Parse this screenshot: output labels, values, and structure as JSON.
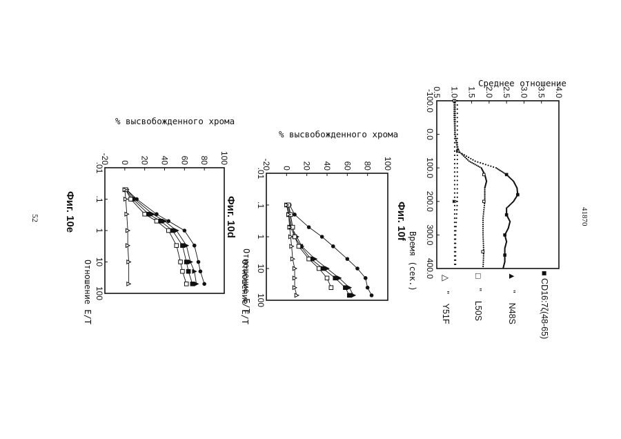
{
  "page": {
    "doc_number": "41870",
    "page_number": "52"
  },
  "figures": {
    "top": {
      "y_title": "Среднее отношение",
      "x_title": "Время (сек.)",
      "x_ticks": [
        "-100.0",
        "0.0",
        "100.0",
        "200.0",
        "300.0",
        "400.0"
      ],
      "y_ticks": [
        "0.5",
        "1.0",
        "1.5",
        "2.0",
        "2.5",
        "3.0",
        "3.5",
        "4.0"
      ],
      "legend": [
        {
          "marker": "■",
          "prefix": "",
          "label": "CD16:7ζ(48-65)"
        },
        {
          "marker": "▲",
          "prefix": "\"",
          "label": "N48S"
        },
        {
          "marker": "□",
          "prefix": "\"",
          "label": "L50S"
        },
        {
          "marker": "△",
          "prefix": "\"",
          "label": "Y51F"
        }
      ]
    },
    "fig10f": {
      "title": "Фиг. 10f",
      "y_title": "% высвобожденного хрома",
      "x_title": "Отношение Е/Т",
      "x_ticks": [
        ".01",
        ".1",
        "1",
        "10",
        "100"
      ],
      "y_ticks": [
        "-20",
        "0",
        "20",
        "40",
        "60",
        "80",
        "100"
      ]
    },
    "fig10d": {
      "title": "Фиг. 10d",
      "x_title": "Отношение Е/Т",
      "x_ticks": [
        ".01",
        ".1",
        "1",
        "10",
        "100"
      ],
      "y_ticks": [
        "-20",
        "0",
        "20",
        "40",
        "60",
        "80",
        "100"
      ]
    },
    "fig10e": {
      "title": "Фиг. 10е",
      "y_title": "% высвобожденного хрома",
      "x_title": "Отношение Е/Т"
    }
  },
  "chart_data": [
    {
      "type": "scatter",
      "xlabel": "Время (сек.)",
      "ylabel": "Среднее отношение",
      "xlim": [
        -100,
        400
      ],
      "ylim": [
        0.5,
        4.0
      ],
      "series": [
        {
          "name": "CD16:7ζ(48-65)",
          "marker": "filled-square",
          "x": [
            -100,
            -50,
            0,
            50,
            80,
            100,
            120,
            140,
            160,
            180,
            200,
            220,
            240,
            260,
            280,
            300,
            320,
            340,
            360,
            380,
            400
          ],
          "y": [
            1.0,
            1.0,
            1.02,
            1.1,
            1.6,
            2.2,
            2.5,
            2.7,
            2.8,
            2.82,
            2.7,
            2.5,
            2.5,
            2.6,
            2.55,
            2.45,
            2.5,
            2.45,
            2.45,
            2.45,
            2.4
          ]
        },
        {
          "name": "N48S",
          "marker": "filled-triangle",
          "x": [
            -100,
            0,
            100,
            200,
            300,
            400
          ],
          "y": [
            1.0,
            1.0,
            1.0,
            1.0,
            1.0,
            1.0
          ]
        },
        {
          "name": "L50S",
          "marker": "open-square",
          "x": [
            -100,
            -50,
            0,
            50,
            80,
            100,
            120,
            140,
            160,
            200,
            250,
            300,
            350,
            400
          ],
          "y": [
            1.0,
            1.0,
            1.0,
            1.1,
            1.4,
            1.75,
            1.85,
            1.9,
            1.85,
            1.85,
            1.8,
            1.8,
            1.82,
            1.8
          ]
        },
        {
          "name": "Y51F",
          "marker": "open-triangle",
          "x": [
            -100,
            0,
            100,
            200,
            300,
            400
          ],
          "y": [
            1.05,
            1.05,
            1.05,
            1.05,
            1.0,
            1.0
          ]
        }
      ]
    },
    {
      "type": "line",
      "title": "Фиг. 10f",
      "xlabel": "Отношение Е/Т",
      "ylabel": "% высвобожденного хрома",
      "xscale": "log",
      "xlim": [
        0.01,
        100
      ],
      "ylim": [
        -20,
        100
      ],
      "series": [
        {
          "marker": "filled-circle",
          "x": [
            0.1,
            0.2,
            0.5,
            1,
            2,
            5,
            10,
            20,
            40,
            70
          ],
          "y": [
            3,
            8,
            22,
            35,
            46,
            60,
            70,
            78,
            80,
            84
          ]
        },
        {
          "marker": "filled-triangle",
          "x": [
            0.1,
            0.2,
            0.5,
            1,
            2,
            5,
            10,
            20,
            40,
            70
          ],
          "y": [
            2,
            3,
            5,
            10,
            15,
            28,
            40,
            52,
            62,
            66
          ]
        },
        {
          "marker": "filled-square",
          "x": [
            0.1,
            0.2,
            0.5,
            1,
            2,
            5,
            10,
            20,
            40,
            70
          ],
          "y": [
            1,
            2,
            4,
            8,
            14,
            24,
            36,
            48,
            58,
            62
          ]
        },
        {
          "marker": "open-square",
          "x": [
            0.1,
            0.2,
            0.5,
            1,
            2,
            5,
            10,
            20,
            40
          ],
          "y": [
            2,
            4,
            6,
            8,
            12,
            22,
            32,
            40,
            44
          ]
        },
        {
          "marker": "open-triangle",
          "x": [
            0.1,
            0.2,
            0.5,
            1,
            2,
            5,
            10,
            20,
            40,
            70
          ],
          "y": [
            0,
            2,
            3,
            4,
            5,
            6,
            8,
            8,
            8,
            10
          ]
        }
      ]
    },
    {
      "type": "line",
      "title": "Фиг. 10d",
      "xlabel": "Отношение Е/Т",
      "xscale": "log",
      "xlim": [
        0.01,
        100
      ],
      "ylim": [
        -20,
        100
      ],
      "series": [
        {
          "marker": "filled-circle",
          "x": [
            0.05,
            0.1,
            0.3,
            0.5,
            1,
            3,
            10,
            20,
            50
          ],
          "y": [
            2,
            12,
            32,
            44,
            60,
            70,
            74,
            76,
            80
          ]
        },
        {
          "marker": "filled-triangle",
          "x": [
            0.05,
            0.1,
            0.3,
            0.5,
            1,
            3,
            10,
            20,
            50
          ],
          "y": [
            2,
            10,
            28,
            40,
            52,
            62,
            66,
            70,
            72
          ]
        },
        {
          "marker": "filled-square",
          "x": [
            0.05,
            0.1,
            0.3,
            0.5,
            1,
            3,
            10,
            20,
            50
          ],
          "y": [
            1,
            8,
            24,
            36,
            48,
            58,
            62,
            64,
            68
          ]
        },
        {
          "marker": "open-square",
          "x": [
            0.05,
            0.1,
            0.3,
            0.5,
            1,
            3,
            10,
            20,
            50
          ],
          "y": [
            1,
            6,
            20,
            32,
            44,
            52,
            56,
            58,
            62
          ]
        },
        {
          "marker": "open-triangle",
          "x": [
            0.05,
            0.1,
            0.3,
            1,
            3,
            10,
            50
          ],
          "y": [
            0,
            1,
            2,
            3,
            3,
            4,
            4
          ]
        }
      ]
    }
  ]
}
